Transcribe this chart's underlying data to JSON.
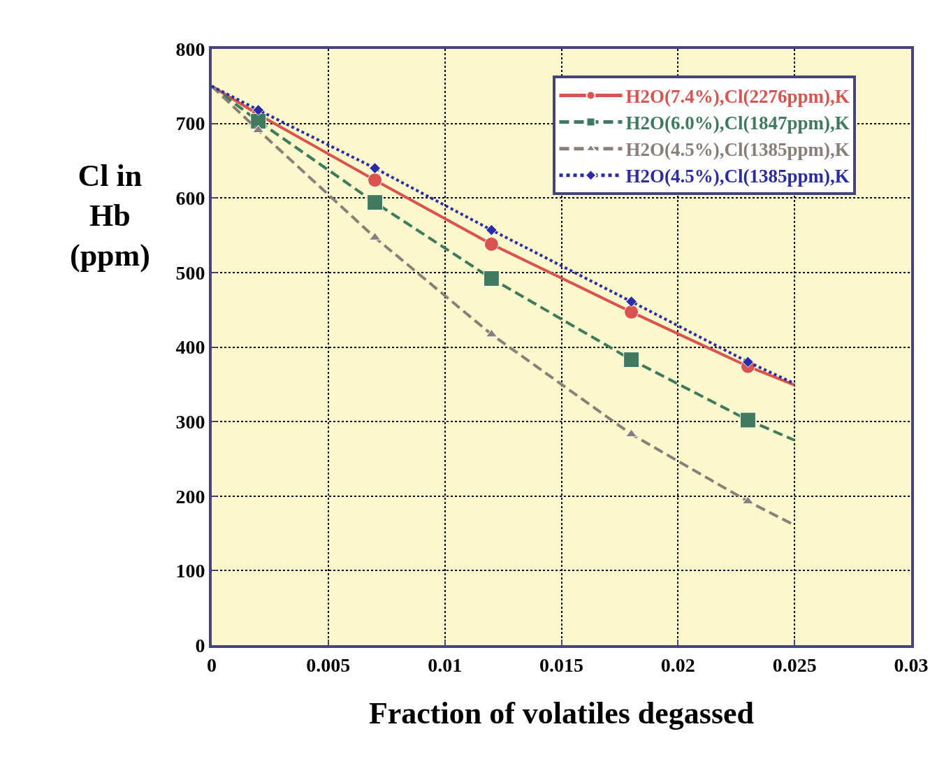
{
  "chart_data": {
    "type": "line",
    "xlabel": "Fraction of volatiles degassed",
    "ylabel": "Cl in\nHb\n(ppm)",
    "x": [
      0,
      0.002,
      0.007,
      0.012,
      0.018,
      0.023,
      0.025
    ],
    "series": [
      {
        "name": "H2O(7.4%),Cl(2276ppm),K",
        "color": "#d9534f",
        "marker": "circle",
        "line_style": "solid",
        "values": [
          750,
          712,
          624,
          538,
          447,
          374,
          349
        ]
      },
      {
        "name": "H2O(6.0%),Cl(1847ppm),K",
        "color": "#3f7a5e",
        "marker": "square",
        "line_style": "dashed",
        "values": [
          750,
          703,
          594,
          492,
          383,
          302,
          275
        ]
      },
      {
        "name": "H2O(4.5%),Cl(1385ppm),K",
        "color": "#8a7f78",
        "marker": "triangle",
        "line_style": "dashed",
        "values": [
          750,
          691,
          547,
          417,
          283,
          193,
          161
        ]
      },
      {
        "name": "H2O(4.5%),Cl(1385ppm),K",
        "color": "#2b2ba6",
        "marker": "diamond",
        "line_style": "dotted",
        "values": [
          750,
          718,
          640,
          557,
          461,
          380,
          351
        ]
      }
    ],
    "xlim": [
      0,
      0.03
    ],
    "xticks": [
      0,
      0.005,
      0.01,
      0.015,
      0.02,
      0.025,
      0.03
    ],
    "ylim": [
      0,
      800
    ],
    "yticks": [
      0,
      100,
      200,
      300,
      400,
      500,
      600,
      700,
      800
    ],
    "grid": true,
    "legend": "top right"
  }
}
